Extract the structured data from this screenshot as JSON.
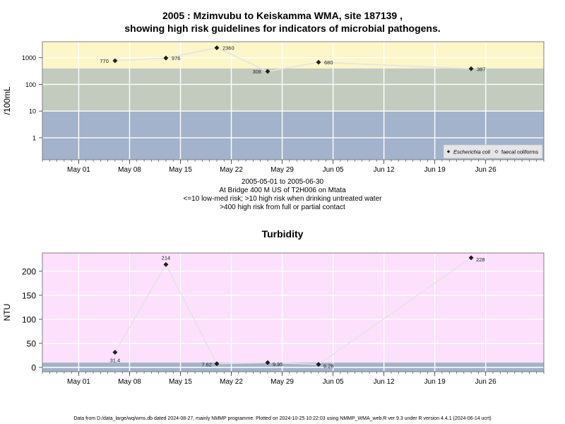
{
  "colors": {
    "high_band": "#fcf6c8",
    "mid_band": "#c3cbbf",
    "low_band": "#a2b3cb",
    "pink_bg": "#fce0fc",
    "frame": "#7f7f7f",
    "grid": "#ffffff",
    "connector": "#e4e4e4",
    "marker": "#1e1e1e"
  },
  "chart_data": [
    {
      "type": "scatter",
      "title": "2005 : Mzimvubu to Keiskamma WMA, site 187139 ,",
      "subtitle": "showing high risk guidelines for indicators of microbial pathogens.",
      "ylabel": "/100mL",
      "yscale": "log",
      "yticks": [
        "1",
        "10",
        "100",
        "1000"
      ],
      "ytick_values": [
        1,
        10,
        100,
        1000
      ],
      "ylim": [
        0.15,
        4000
      ],
      "xlim": [
        "2005-04-26",
        "2005-07-04"
      ],
      "xticks": [
        "May 01",
        "May 08",
        "May 15",
        "May 22",
        "May 29",
        "Jun 05",
        "Jun 12",
        "Jun 19",
        "Jun 26"
      ],
      "xtick_dates": [
        "2005-05-01",
        "2005-05-08",
        "2005-05-15",
        "2005-05-22",
        "2005-05-29",
        "2005-06-05",
        "2005-06-12",
        "2005-06-19",
        "2005-06-26"
      ],
      "bands": [
        {
          "from": 0.15,
          "to": 10,
          "color": "low"
        },
        {
          "from": 10,
          "to": 400,
          "color": "mid"
        },
        {
          "from": 400,
          "to": 4000,
          "color": "high"
        }
      ],
      "grid": true,
      "legend_position": "bottom-right",
      "legend": [
        "Escherichia coli",
        "faecal coliforms"
      ],
      "series": [
        {
          "name": "Escherichia coli",
          "points": [
            {
              "x": "2005-05-06",
              "y": 770,
              "label": "770"
            },
            {
              "x": "2005-05-13",
              "y": 976,
              "label": "976"
            },
            {
              "x": "2005-05-20",
              "y": 2360,
              "label": "2360"
            },
            {
              "x": "2005-05-27",
              "y": 308,
              "label": "308"
            },
            {
              "x": "2005-06-03",
              "y": 680,
              "label": "680"
            },
            {
              "x": "2005-06-24",
              "y": 387,
              "label": "387"
            }
          ]
        }
      ]
    },
    {
      "type": "scatter",
      "title": "Turbidity",
      "ylabel": "NTU",
      "yscale": "linear",
      "yticks": [
        "0",
        "50",
        "100",
        "150",
        "200"
      ],
      "ytick_values": [
        0,
        50,
        100,
        150,
        200
      ],
      "ylim": [
        -9,
        238
      ],
      "xlim": [
        "2005-04-26",
        "2005-07-04"
      ],
      "xticks": [
        "May 01",
        "May 08",
        "May 15",
        "May 22",
        "May 29",
        "Jun 05",
        "Jun 12",
        "Jun 19",
        "Jun 26"
      ],
      "xtick_dates": [
        "2005-05-01",
        "2005-05-08",
        "2005-05-15",
        "2005-05-22",
        "2005-05-29",
        "2005-06-05",
        "2005-06-12",
        "2005-06-19",
        "2005-06-26"
      ],
      "bands": [
        {
          "from": -9,
          "to": 10,
          "color": "low"
        },
        {
          "from": 10,
          "to": 238,
          "color": "pink"
        }
      ],
      "grid": true,
      "series": [
        {
          "name": "",
          "points": [
            {
              "x": "2005-05-06",
              "y": 31.4,
              "label": "31.4"
            },
            {
              "x": "2005-05-13",
              "y": 214,
              "label": "214"
            },
            {
              "x": "2005-05-20",
              "y": 7.62,
              "label": "7.62"
            },
            {
              "x": "2005-05-27",
              "y": 9.95,
              "label": "9.95"
            },
            {
              "x": "2005-06-03",
              "y": 6.28,
              "label": "6.28"
            },
            {
              "x": "2005-06-24",
              "y": 228,
              "label": "228"
            }
          ]
        }
      ]
    }
  ],
  "info": {
    "date_range": "2005-05-01 to 2005-06-30",
    "location": "At Bridge 400 M US of T2H006 on Mtata",
    "risk_note_1": "<=10 low-med risk; >10 high risk when drinking untreated water",
    "risk_note_2": ">400 high risk from full or partial contact"
  },
  "footer": "Data from D:/data_large/wq/wms.db dated 2024-08-27, mainly NMMP programme. Plotted on 2024-10-25 10:22:03 using NMMP_WMA_web.R ver 9.3 under R version 4.4.1 (2024-06-14 ucrt)"
}
